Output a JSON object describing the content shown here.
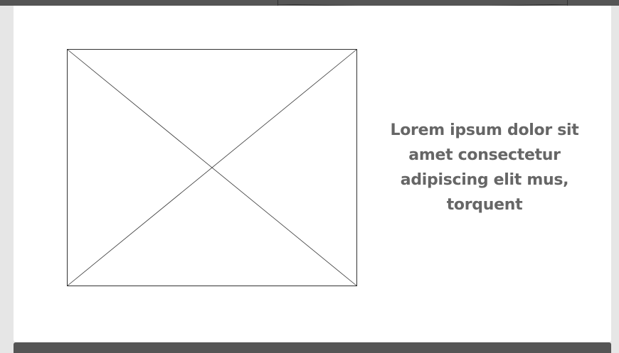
{
  "section": {
    "headline": "Lorem ipsum dolor sit amet consectetur adipiscing elit mus, torquent"
  },
  "colors": {
    "page_background": "#e6e6e6",
    "card_background": "#ffffff",
    "bar": "#555555",
    "headline_text": "#666666",
    "placeholder_stroke": "#333333"
  },
  "icons": {
    "image_placeholder": "image-placeholder-icon"
  }
}
